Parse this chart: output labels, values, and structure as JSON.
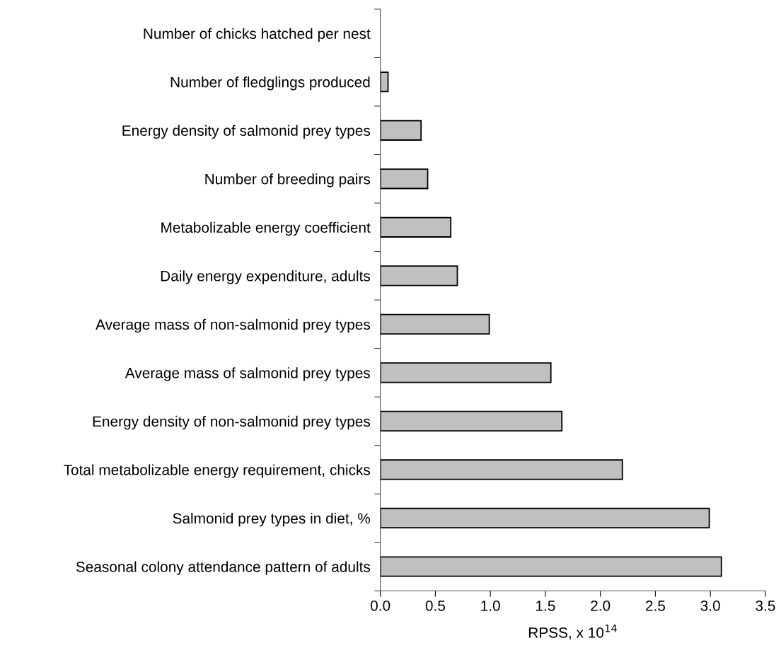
{
  "chart_data": {
    "type": "bar",
    "orientation": "horizontal",
    "xlabel": "RPSS, x 10$^{14}$",
    "categories": [
      "Number of chicks hatched per nest",
      "Number of fledglings produced",
      "Energy density of salmonid prey types",
      "Number of breeding pairs",
      "Metabolizable energy coefficient",
      "Daily energy expenditure, adults",
      "Average mass of non-salmonid prey types",
      "Average mass of salmonid prey types",
      "Energy density of non-salmonid prey types",
      "Total metabolizable energy requirement, chicks",
      "Salmonid prey types in diet, %",
      "Seasonal colony attendance pattern of adults"
    ],
    "values": [
      null,
      0.07,
      0.37,
      0.43,
      0.64,
      0.7,
      0.99,
      1.55,
      1.65,
      2.2,
      2.99,
      3.1
    ],
    "color": "#c0c0c0",
    "xlim": [
      0,
      3.5
    ],
    "xticks": [
      {
        "value": 0,
        "label": "0.0"
      },
      {
        "value": 0.5,
        "label": "0.5"
      },
      {
        "value": 1,
        "label": "1.0"
      },
      {
        "value": 1.5,
        "label": "1.5"
      },
      {
        "value": 2,
        "label": "2.0"
      },
      {
        "value": 2.5,
        "label": "2.5"
      },
      {
        "value": 3,
        "label": "3.0"
      },
      {
        "value": 3.5,
        "label": "3.5"
      }
    ],
    "grid": false
  }
}
